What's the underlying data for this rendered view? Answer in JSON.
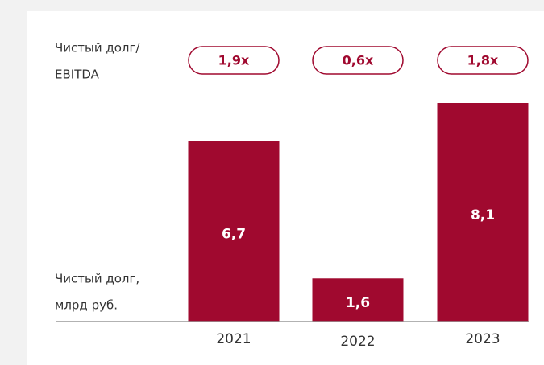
{
  "chart_data": {
    "type": "bar",
    "categories": [
      "2021",
      "2022",
      "2023"
    ],
    "values": [
      6.7,
      1.6,
      8.1
    ],
    "value_labels": [
      "6,7",
      "1,6",
      "8,1"
    ],
    "color": "#a0092f",
    "ylim": [
      0,
      9
    ],
    "ylabel": [
      "Чистый долг,",
      "млрд руб."
    ],
    "ratio": {
      "name": [
        "Чистый долг/",
        "EBITDA"
      ],
      "values": [
        1.9,
        0.6,
        1.8
      ],
      "value_labels": [
        "1,9x",
        "0,6x",
        "1,8x"
      ]
    }
  }
}
